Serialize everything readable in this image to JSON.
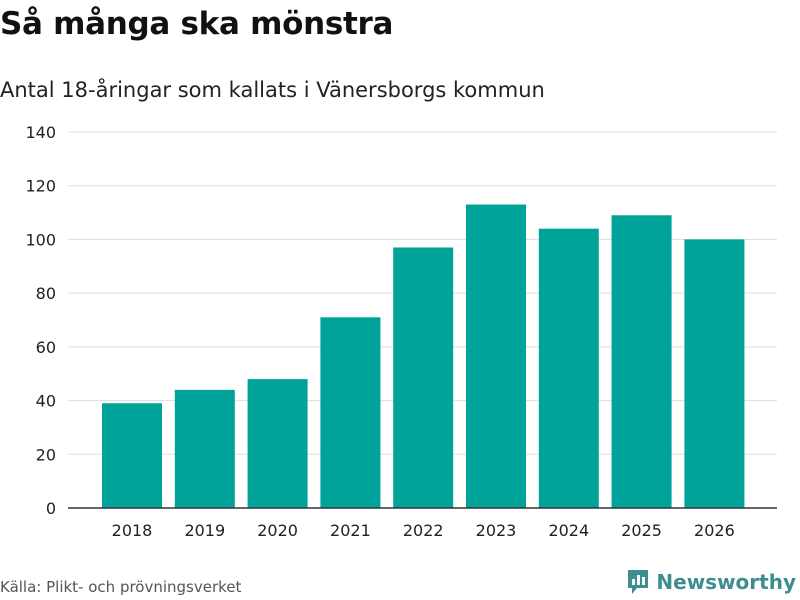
{
  "header": {
    "title": "Så många ska mönstra",
    "subtitle": "Antal 18-åringar som kallats i Vänersborgs kommun"
  },
  "footer": {
    "source": "Källa: Plikt- och prövningsverket",
    "brand": "Newsworthy",
    "brand_icon": "newsworthy-logo-icon"
  },
  "colors": {
    "bar": "#00a39a",
    "grid": "#dddddd",
    "axis": "#333333",
    "brand": "#3e8d8f"
  },
  "chart_data": {
    "type": "bar",
    "title": "Så många ska mönstra",
    "subtitle": "Antal 18-åringar som kallats i Vänersborgs kommun",
    "xlabel": "",
    "ylabel": "",
    "categories": [
      "2018",
      "2019",
      "2020",
      "2021",
      "2022",
      "2023",
      "2024",
      "2025",
      "2026"
    ],
    "values": [
      39,
      44,
      48,
      71,
      97,
      113,
      104,
      109,
      100
    ],
    "ylim": [
      0,
      140
    ],
    "yticks": [
      0,
      20,
      40,
      60,
      80,
      100,
      120,
      140
    ],
    "grid": true
  }
}
